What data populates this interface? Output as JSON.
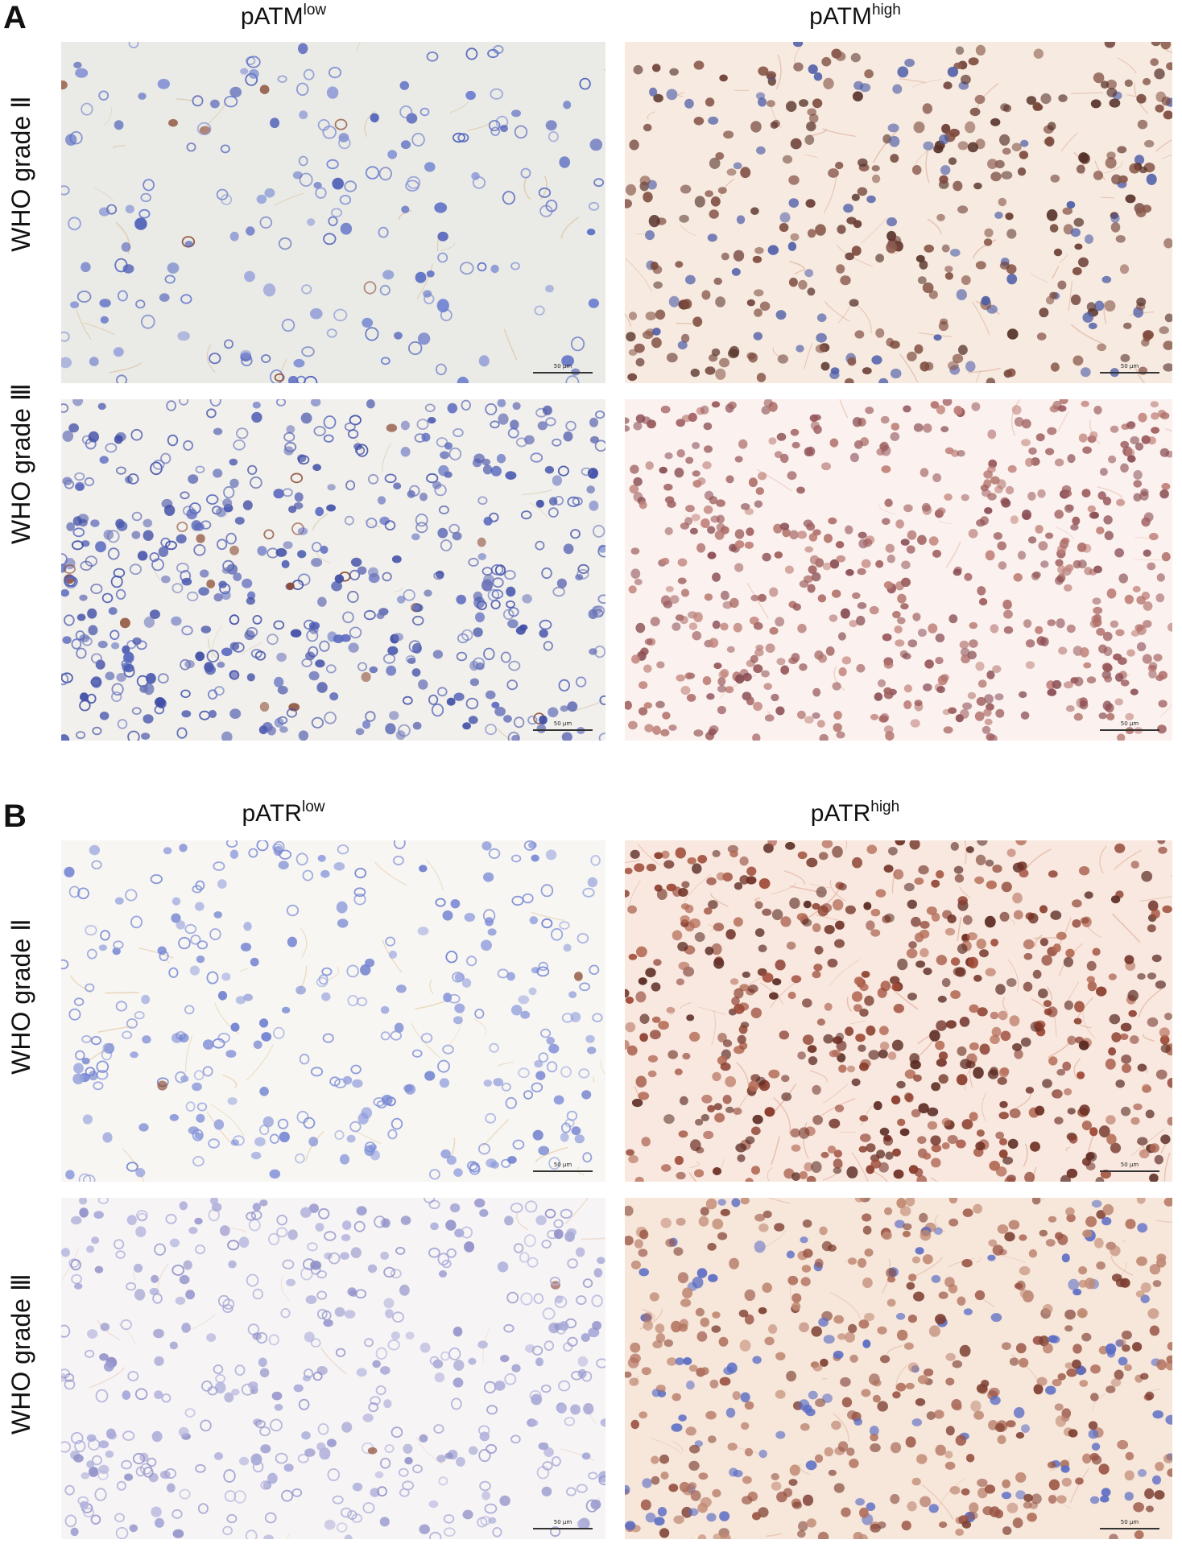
{
  "panels": [
    {
      "letter": "A",
      "columns": [
        {
          "base": "pATM",
          "sup": "low"
        },
        {
          "base": "pATM",
          "sup": "high"
        }
      ],
      "rows": [
        "WHO grade Ⅱ",
        "WHO grade Ⅲ"
      ],
      "images": [
        {
          "id": "a-low-2",
          "style": "low",
          "bg": "#eaebe6",
          "scale_label": "50 μm"
        },
        {
          "id": "a-high-2",
          "style": "high",
          "bg": "#f7eae0",
          "scale_label": "50 μm"
        },
        {
          "id": "a-low-3",
          "style": "low-dense",
          "bg": "#f1f0ec",
          "scale_label": "50 μm"
        },
        {
          "id": "a-high-3",
          "style": "high-pink",
          "bg": "#fbf1ee",
          "scale_label": "50 μm"
        }
      ]
    },
    {
      "letter": "B",
      "columns": [
        {
          "base": "pATR",
          "sup": "low"
        },
        {
          "base": "pATR",
          "sup": "high"
        }
      ],
      "rows": [
        "WHO grade Ⅱ",
        "WHO grade Ⅲ"
      ],
      "images": [
        {
          "id": "b-low-2",
          "style": "low-light",
          "bg": "#f7f6f3",
          "scale_label": "50 μm"
        },
        {
          "id": "b-high-2",
          "style": "high-red",
          "bg": "#f8e8df",
          "scale_label": "50 μm"
        },
        {
          "id": "b-low-3",
          "style": "low-lilac",
          "bg": "#f6f4f5",
          "scale_label": "50 μm"
        },
        {
          "id": "b-high-3",
          "style": "high-mixed",
          "bg": "#f7e6da",
          "scale_label": "50 μm"
        }
      ]
    }
  ],
  "colors": {
    "hematoxylin": "#5f6fbf",
    "dab": "#8b4a34"
  }
}
